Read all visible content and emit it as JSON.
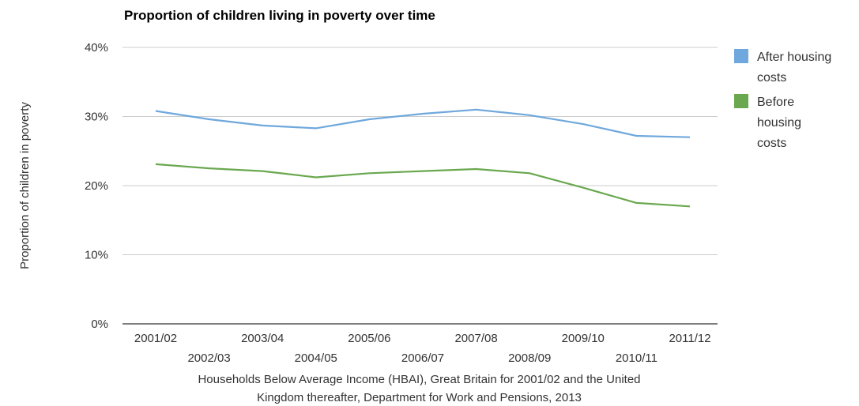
{
  "chart_data": {
    "type": "line",
    "title": "Proportion of children living in poverty over time",
    "xlabel": "Households Below Average Income (HBAI), Great Britain for 2001/02 and the United Kingdom thereafter, Department for Work and Pensions, 2013",
    "xlabel_lines": [
      "Households Below Average Income (HBAI), Great Britain for 2001/02 and the United",
      "Kingdom thereafter, Department for Work and Pensions, 2013"
    ],
    "ylabel": "Proportion of children in poverty",
    "categories": [
      "2001/02",
      "2002/03",
      "2003/04",
      "2004/05",
      "2005/06",
      "2006/07",
      "2007/08",
      "2008/09",
      "2009/10",
      "2010/11",
      "2011/12"
    ],
    "ylim": [
      0,
      40
    ],
    "yticks": [
      "0%",
      "10%",
      "20%",
      "30%",
      "40%"
    ],
    "grid": true,
    "legend_position": "right",
    "series": [
      {
        "name": "After housing costs",
        "name_lines": [
          "After housing",
          "costs"
        ],
        "color": "#6fa8dc",
        "values": [
          30.8,
          29.6,
          28.7,
          28.3,
          29.6,
          30.4,
          31.0,
          30.2,
          28.9,
          27.2,
          27.0
        ]
      },
      {
        "name": "Before housing costs",
        "name_lines": [
          "Before",
          "housing",
          "costs"
        ],
        "color": "#6aa84f",
        "values": [
          23.1,
          22.5,
          22.1,
          21.2,
          21.8,
          22.1,
          22.4,
          21.8,
          19.7,
          17.5,
          17.0
        ]
      }
    ]
  }
}
